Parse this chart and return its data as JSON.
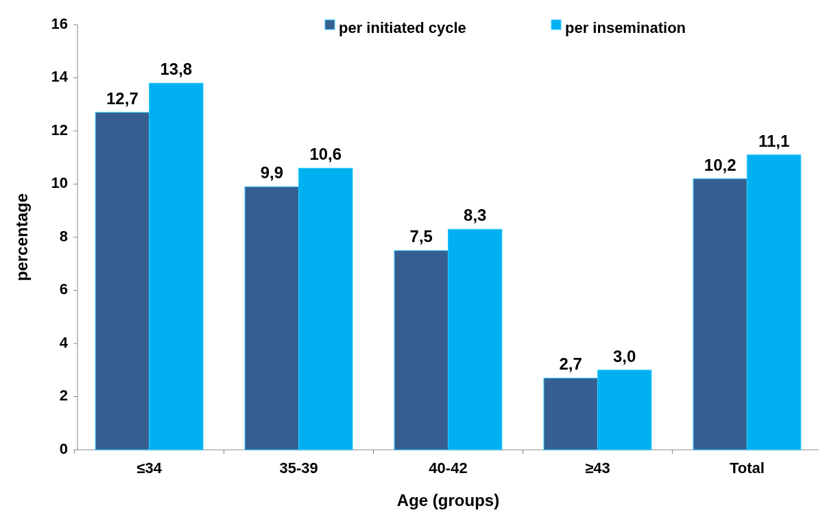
{
  "chart_data": {
    "type": "bar",
    "xlabel": "Age (groups)",
    "ylabel": "percentage",
    "categories": [
      "≤34",
      "35-39",
      "40-42",
      "≥43",
      "Total"
    ],
    "series": [
      {
        "name": "per initiated cycle",
        "color": "#365f91",
        "values": [
          12.7,
          9.9,
          7.5,
          2.7,
          10.2
        ],
        "value_labels": [
          "12,7",
          "9,9",
          "7,5",
          "2,7",
          "10,2"
        ]
      },
      {
        "name": "per insemination",
        "color": "#00b0f0",
        "values": [
          13.8,
          10.6,
          8.3,
          3.0,
          11.1
        ],
        "value_labels": [
          "13,8",
          "10,6",
          "8,3",
          "3,0",
          "11,1"
        ]
      }
    ],
    "ylim": [
      0,
      16
    ],
    "yticks": [
      0,
      2,
      4,
      6,
      8,
      10,
      12,
      14,
      16
    ],
    "legend": "top right",
    "grid": false
  }
}
